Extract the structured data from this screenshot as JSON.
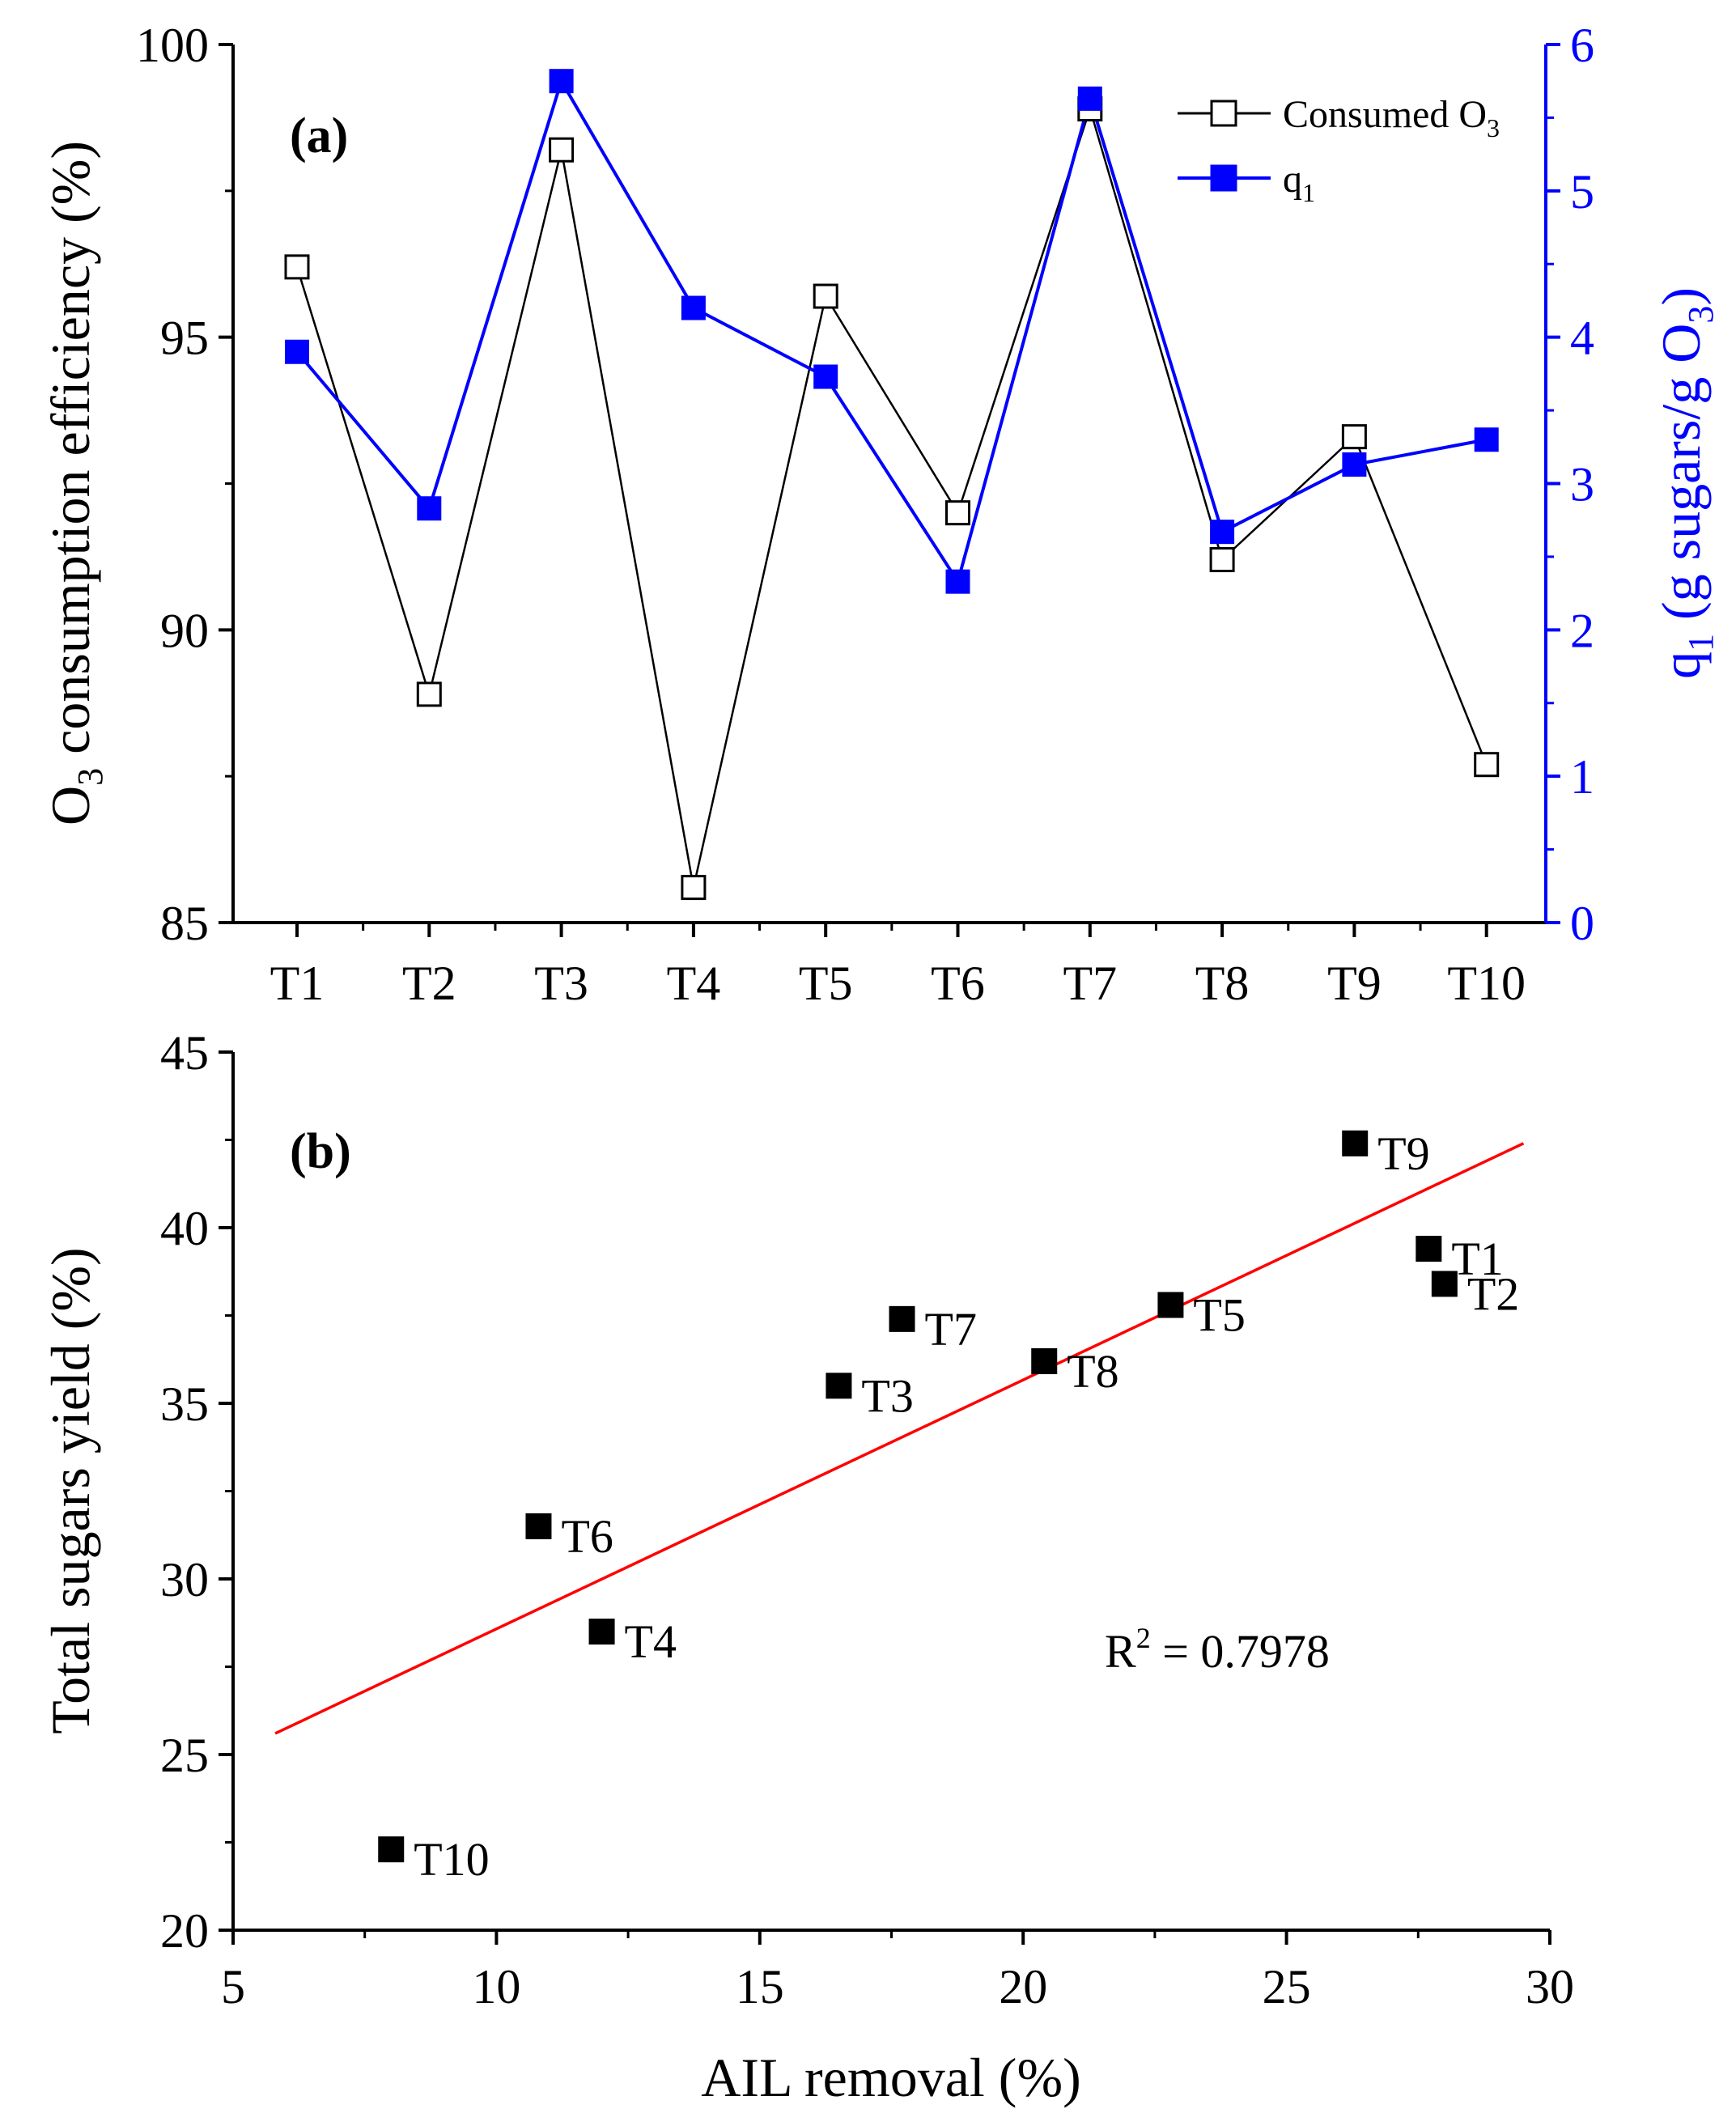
{
  "colors": {
    "axis": "#000000",
    "consumed_series": "#000000",
    "q1_series": "#0000ff",
    "fit_line": "#ff0000",
    "scatter_points": "#000000"
  },
  "chart_data": [
    {
      "type": "line",
      "panel_tag": "(a)",
      "categories": [
        "T1",
        "T2",
        "T3",
        "T4",
        "T5",
        "T6",
        "T7",
        "T8",
        "T9",
        "T10"
      ],
      "ylabel_left": {
        "prefix": "O",
        "sub": "3",
        "rest": " consumption efficiency (%)"
      },
      "ylabel_right": {
        "prefix": "q",
        "sub": "1",
        "rest": " (g sugars/g O",
        "sub2": "3",
        "suffix": ")"
      },
      "ylim_left": [
        85,
        100
      ],
      "yticks_left": [
        "85",
        "90",
        "95",
        "100"
      ],
      "ylim_right": [
        0,
        6
      ],
      "yticks_right": [
        "0",
        "1",
        "2",
        "3",
        "4",
        "5",
        "6"
      ],
      "legend_position": "top-right",
      "series": [
        {
          "name": "Consumed O3",
          "legend_label": "Consumed O",
          "legend_sub": "3",
          "axis": "left",
          "marker": "open-square",
          "values": [
            96.2,
            88.9,
            98.2,
            85.6,
            95.7,
            92.0,
            98.9,
            91.2,
            93.3,
            87.7
          ]
        },
        {
          "name": "q1",
          "legend_label": "q",
          "legend_sub": "1",
          "axis": "right",
          "marker": "filled-square",
          "values": [
            3.9,
            2.83,
            5.75,
            4.2,
            3.73,
            2.33,
            5.63,
            2.67,
            3.13,
            3.3
          ]
        }
      ]
    },
    {
      "type": "scatter",
      "panel_tag": "(b)",
      "xlabel": "AIL removal (%)",
      "ylabel": "Total sugars yield (%)",
      "xlim": [
        5,
        30
      ],
      "xticks": [
        "5",
        "10",
        "15",
        "20",
        "25",
        "30"
      ],
      "ylim": [
        20,
        45
      ],
      "yticks": [
        "20",
        "25",
        "30",
        "35",
        "40",
        "45"
      ],
      "points": [
        {
          "label": "T9",
          "x": 26.3,
          "y": 42.4
        },
        {
          "label": "T1",
          "x": 27.7,
          "y": 39.4
        },
        {
          "label": "T2",
          "x": 28.0,
          "y": 38.4
        },
        {
          "label": "T7",
          "x": 17.7,
          "y": 37.4
        },
        {
          "label": "T5",
          "x": 22.8,
          "y": 37.8
        },
        {
          "label": "T8",
          "x": 20.4,
          "y": 36.2
        },
        {
          "label": "T3",
          "x": 16.5,
          "y": 35.5
        },
        {
          "label": "T6",
          "x": 10.8,
          "y": 31.5
        },
        {
          "label": "T4",
          "x": 12.0,
          "y": 28.5
        },
        {
          "label": "T10",
          "x": 8.0,
          "y": 22.3
        }
      ],
      "fit_line": {
        "x": [
          5.8,
          29.5
        ],
        "y": [
          25.6,
          42.4
        ]
      },
      "r2_text": {
        "prefix": "R",
        "sup": "2",
        "rest": " = 0.7978"
      }
    }
  ]
}
